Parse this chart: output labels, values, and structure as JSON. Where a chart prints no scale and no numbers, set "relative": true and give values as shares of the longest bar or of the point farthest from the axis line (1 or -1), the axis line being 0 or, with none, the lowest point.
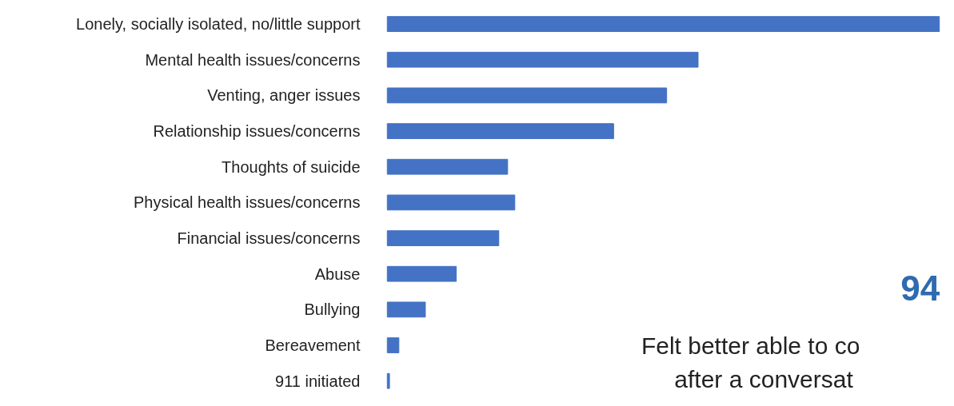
{
  "chart_data": {
    "type": "bar",
    "orientation": "horizontal",
    "relative": true,
    "color": "#4472c4",
    "categories": [
      "Lonely, socially isolated, no/little support",
      "Mental health issues/concerns",
      "Venting, anger issues",
      "Relationship issues/concerns",
      "Thoughts of suicide",
      "Physical health issues/concerns",
      "Financial issues/concerns",
      "Abuse",
      "Bullying",
      "Bereavement",
      "911 initiated"
    ],
    "values": [
      1,
      0.563,
      0.506,
      0.41,
      0.218,
      0.231,
      0.202,
      0.125,
      0.069,
      0.021,
      0.004
    ],
    "annotations": [
      "94",
      "Felt better able to co",
      "after a conversat"
    ],
    "grid": false
  }
}
